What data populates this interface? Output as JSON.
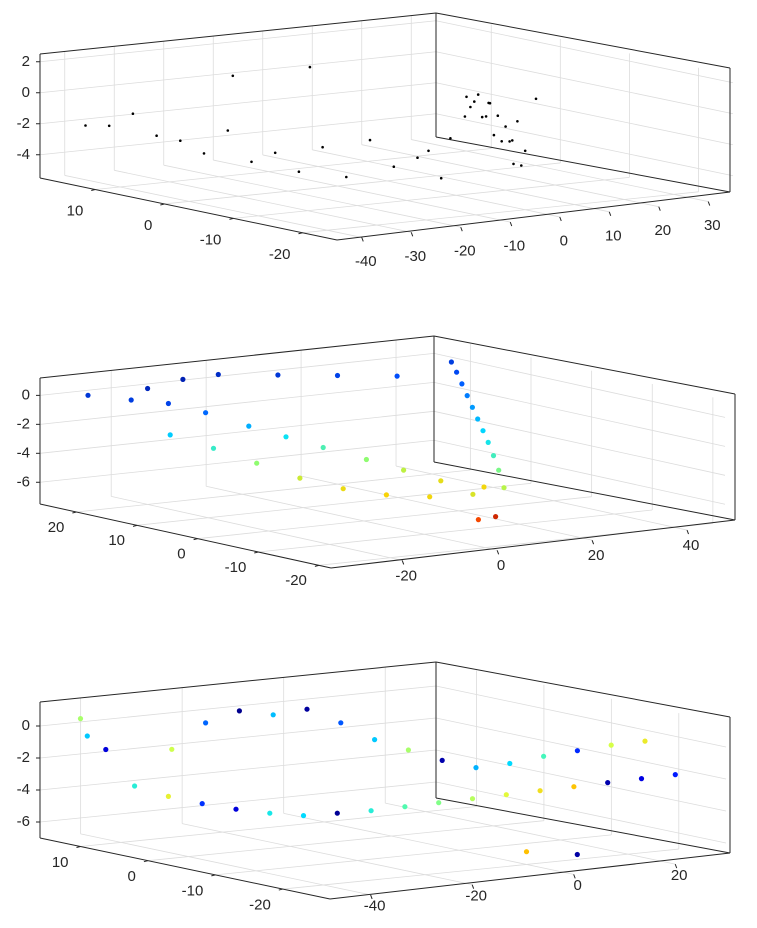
{
  "chart_data": [
    {
      "type": "scatter3d",
      "marker": "small-dot",
      "colormap": "none",
      "point_color": "#000000",
      "grid": true,
      "xlim": [
        -45,
        35
      ],
      "ylim": [
        -25,
        18
      ],
      "zlim": [
        -5.5,
        2.5
      ],
      "x_ticks": [
        "-40",
        "-30",
        "-20",
        "-10",
        "0",
        "10",
        "20",
        "30"
      ],
      "y_ticks": [
        "-20",
        "-10",
        "0",
        "10"
      ],
      "z_ticks": [
        "2",
        "0",
        "-2",
        "-4"
      ],
      "points": [
        [
          -40,
          15,
          -2
        ],
        [
          -38,
          13,
          -1.9
        ],
        [
          -36,
          11,
          -1
        ],
        [
          -34,
          9,
          -2.3
        ],
        [
          -32,
          7,
          -2.5
        ],
        [
          -30,
          5,
          -3.2
        ],
        [
          -28,
          3,
          -1.6
        ],
        [
          -26,
          1,
          -3.5
        ],
        [
          -24,
          -1,
          -2.8
        ],
        [
          -22,
          -3,
          -3.9
        ],
        [
          -20,
          -5,
          -2.2
        ],
        [
          -18,
          -7,
          -4
        ],
        [
          -16,
          -9,
          -1.5
        ],
        [
          -14,
          -11,
          -3.1
        ],
        [
          -12,
          -13,
          -2.4
        ],
        [
          -10,
          -15,
          -3.6
        ],
        [
          -8,
          -17,
          0.5
        ],
        [
          -6,
          -19,
          1.5
        ],
        [
          -4,
          -21,
          -0.8
        ],
        [
          -2,
          -23,
          2
        ],
        [
          0,
          -20,
          -1.7
        ],
        [
          2,
          -18,
          -2.9
        ],
        [
          4,
          -16,
          -0.3
        ],
        [
          6,
          -14,
          -3.3
        ],
        [
          8,
          -12,
          -2.1
        ],
        [
          10,
          -10,
          -1.4
        ],
        [
          12,
          -8,
          -2.6
        ],
        [
          14,
          -6,
          -1.2
        ],
        [
          16,
          -4,
          -2.7
        ],
        [
          18,
          -2,
          -0.9
        ],
        [
          20,
          0,
          -2
        ],
        [
          22,
          2,
          -2.3
        ],
        [
          24,
          4,
          -1.1
        ],
        [
          26,
          6,
          -1.8
        ],
        [
          28,
          8,
          -2.4
        ],
        [
          30,
          10,
          -2
        ],
        [
          -20,
          8,
          1.2
        ],
        [
          -10,
          4,
          1.8
        ],
        [
          0,
          -6,
          -3
        ],
        [
          10,
          -2,
          -2.9
        ]
      ]
    },
    {
      "type": "scatter3d",
      "marker": "filled-circle",
      "colormap": "jet",
      "color_by": "height",
      "color_stops": [
        "#00007f",
        "#0050ff",
        "#00e0ff",
        "#a0ff60",
        "#ffd000",
        "#ff5000",
        "#a00000"
      ],
      "grid": true,
      "xlim": [
        -35,
        48
      ],
      "ylim": [
        -22,
        26
      ],
      "zlim": [
        -7.5,
        1.2
      ],
      "x_ticks": [
        "-20",
        "0",
        "20",
        "40"
      ],
      "y_ticks": [
        "-20",
        "-10",
        "0",
        "10",
        "20"
      ],
      "z_ticks": [
        "0",
        "-2",
        "-4",
        "-6"
      ],
      "points": [
        [
          -30,
          22,
          0.2
        ],
        [
          -26,
          18,
          0.1
        ],
        [
          -22,
          15,
          0
        ],
        [
          -18,
          12,
          -0.5
        ],
        [
          -14,
          8,
          -1.2
        ],
        [
          -10,
          5,
          -1.8
        ],
        [
          -6,
          2,
          -2.4
        ],
        [
          -2,
          -2,
          -3
        ],
        [
          2,
          -5,
          -3.6
        ],
        [
          6,
          -8,
          -4.2
        ],
        [
          10,
          -12,
          -4.4
        ],
        [
          -28,
          10,
          -1.5
        ],
        [
          -24,
          6,
          -2.2
        ],
        [
          -20,
          2,
          -3
        ],
        [
          -16,
          -2,
          -3.8
        ],
        [
          -12,
          -6,
          -4.3
        ],
        [
          -8,
          -10,
          -4.5
        ],
        [
          -4,
          -14,
          -4.4
        ],
        [
          0,
          -18,
          -4
        ],
        [
          4,
          -20,
          -3.5
        ],
        [
          8,
          -16,
          -2.8
        ],
        [
          12,
          -12,
          -2.3
        ],
        [
          16,
          -8,
          -1.9
        ],
        [
          20,
          -4,
          -1.6
        ],
        [
          24,
          0,
          -1.3
        ],
        [
          28,
          4,
          -1
        ],
        [
          32,
          8,
          -0.7
        ],
        [
          36,
          12,
          -0.4
        ],
        [
          40,
          16,
          -0.1
        ],
        [
          44,
          20,
          0.1
        ],
        [
          -20,
          20,
          0.5
        ],
        [
          -10,
          22,
          0.6
        ],
        [
          0,
          24,
          0.4
        ],
        [
          10,
          22,
          0.2
        ],
        [
          20,
          20,
          0
        ],
        [
          30,
          18,
          -0.2
        ],
        [
          5,
          -15,
          -6.2
        ],
        [
          15,
          -10,
          -6.8
        ]
      ]
    },
    {
      "type": "scatter3d",
      "marker": "filled-circle",
      "colormap": "jet",
      "color_by": "intensity",
      "color_stops": [
        "#00007f",
        "#0000ff",
        "#0080ff",
        "#00e0ff",
        "#60ffa0",
        "#e0ff40",
        "#ffc000"
      ],
      "grid": true,
      "xlim": [
        -48,
        30
      ],
      "ylim": [
        -27,
        16
      ],
      "zlim": [
        -7,
        1.5
      ],
      "x_ticks": [
        "-40",
        "-20",
        "0",
        "20"
      ],
      "y_ticks": [
        "-20",
        "-10",
        "0",
        "10"
      ],
      "z_ticks": [
        "0",
        "-2",
        "-4",
        "-6"
      ],
      "points": [
        [
          -44,
          13,
          0.6
        ],
        [
          -44,
          12,
          -0.4
        ],
        [
          -43,
          10,
          -1.1
        ],
        [
          -40,
          8,
          -3.3
        ],
        [
          -36,
          6,
          -3.9
        ],
        [
          -32,
          4,
          -4.3
        ],
        [
          -28,
          2,
          -4.6
        ],
        [
          -24,
          0,
          -4.8
        ],
        [
          -20,
          -2,
          -4.9
        ],
        [
          -16,
          -4,
          -4.7
        ],
        [
          -12,
          -6,
          -4.5
        ],
        [
          -8,
          -8,
          -4.2
        ],
        [
          -4,
          -10,
          -3.9
        ],
        [
          0,
          -12,
          -3.6
        ],
        [
          4,
          -14,
          -3.3
        ],
        [
          8,
          -16,
          -3
        ],
        [
          12,
          -18,
          -2.7
        ],
        [
          16,
          -20,
          -2.4
        ],
        [
          20,
          -22,
          -2.1
        ],
        [
          24,
          -24,
          -1.8
        ],
        [
          -30,
          10,
          -1.5
        ],
        [
          -26,
          8,
          0.2
        ],
        [
          -22,
          6,
          1
        ],
        [
          -18,
          4,
          0.8
        ],
        [
          -14,
          2,
          1.2
        ],
        [
          -10,
          0,
          0.4
        ],
        [
          -6,
          -2,
          -0.6
        ],
        [
          -2,
          -4,
          -1.2
        ],
        [
          2,
          -6,
          -1.8
        ],
        [
          6,
          -8,
          -2.2
        ],
        [
          10,
          -10,
          -1.9
        ],
        [
          14,
          -12,
          -1.4
        ],
        [
          18,
          -14,
          -1
        ],
        [
          22,
          -16,
          -0.6
        ],
        [
          26,
          -18,
          -0.3
        ],
        [
          0,
          -20,
          -6.2
        ],
        [
          10,
          -20,
          -6.7
        ]
      ]
    }
  ]
}
